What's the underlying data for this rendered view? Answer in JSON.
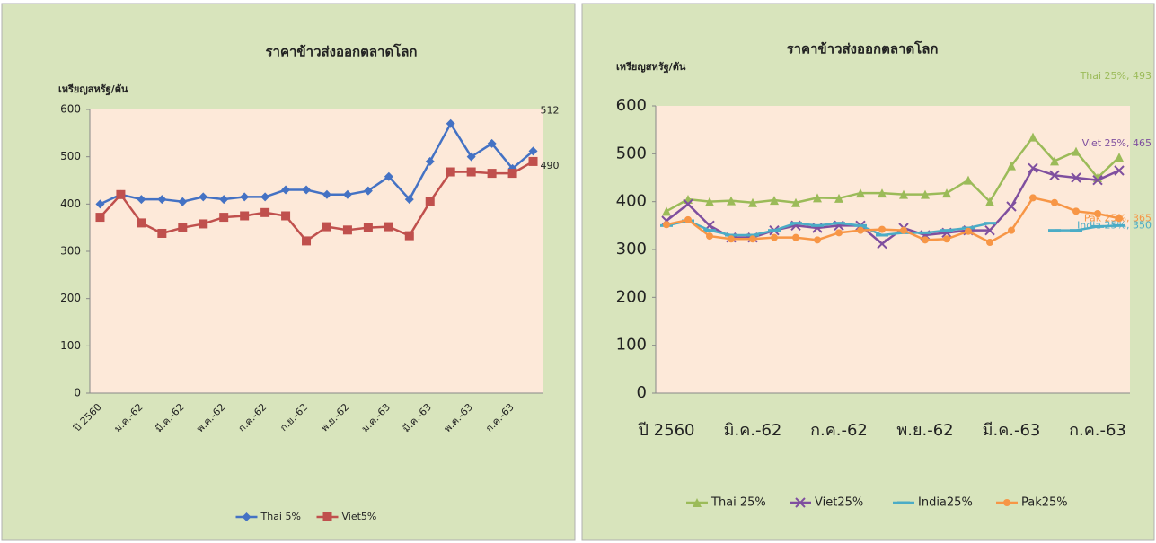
{
  "chart_data": [
    {
      "type": "line",
      "title": "ราคาข้าวส่งออกตลาดโลก",
      "y_label": "เหรียญสหรัฐ/ตัน",
      "categories": [
        "ปี 2560",
        null,
        "ม.ค.-62",
        null,
        "มี.ค.-62",
        null,
        "พ.ค.-62",
        null,
        "ก.ค.-62",
        null,
        "ก.ย.-62",
        null,
        "พ.ย.-62",
        null,
        "ม.ค.-63",
        null,
        "มี.ค.-63",
        null,
        "พ.ค.-63",
        null,
        "ก.ค.-63",
        null
      ],
      "series": [
        {
          "name": "Thai 5%",
          "color": "#4472c4",
          "marker": "diamond",
          "values": [
            400,
            420,
            410,
            410,
            405,
            415,
            410,
            415,
            415,
            430,
            430,
            420,
            420,
            428,
            458,
            410,
            490,
            570,
            500,
            528,
            475,
            512
          ],
          "value_labels": [
            null,
            null,
            null,
            null,
            null,
            null,
            null,
            null,
            null,
            null,
            null,
            null,
            null,
            null,
            null,
            null,
            null,
            null,
            null,
            null,
            null,
            "512"
          ]
        },
        {
          "name": "Viet5%",
          "color": "#c0504d",
          "marker": "square",
          "values": [
            372,
            420,
            360,
            338,
            350,
            358,
            372,
            375,
            382,
            375,
            322,
            352,
            345,
            350,
            352,
            333,
            405,
            468,
            468,
            465,
            465,
            490
          ],
          "value_labels": [
            null,
            null,
            null,
            null,
            null,
            null,
            null,
            null,
            null,
            null,
            null,
            null,
            null,
            null,
            null,
            null,
            null,
            null,
            null,
            null,
            null,
            "490"
          ]
        }
      ],
      "ylim": [
        0,
        600
      ],
      "yticks": [
        0,
        100,
        200,
        300,
        400,
        500,
        600
      ],
      "legend": "bottom"
    },
    {
      "type": "line",
      "title": "ราคาข้าวส่งออกตลาดโลก",
      "y_label": "เหรียญสหรัฐ/ตัน",
      "categories": [
        "ปี 2560",
        null,
        null,
        null,
        "มิ.ค.-62",
        null,
        null,
        null,
        "ก.ค.-62",
        null,
        null,
        null,
        "พ.ย.-62",
        null,
        null,
        null,
        "มี.ค.-63",
        null,
        null,
        null,
        "ก.ค.-63",
        null
      ],
      "series": [
        {
          "name": "Thai 25%",
          "color": "#9bbb59",
          "marker": "triangle",
          "values": [
            380,
            405,
            400,
            402,
            398,
            403,
            398,
            408,
            407,
            418,
            418,
            415,
            415,
            418,
            445,
            400,
            475,
            535,
            485,
            505,
            450,
            493
          ],
          "value_labels": [
            null,
            null,
            null,
            null,
            null,
            null,
            null,
            null,
            null,
            null,
            null,
            null,
            null,
            null,
            null,
            null,
            null,
            null,
            null,
            null,
            null,
            "Thai 25%, 493"
          ]
        },
        {
          "name": "Viet25%",
          "color": "#7f4f9f",
          "marker": "x",
          "values": [
            360,
            395,
            350,
            325,
            325,
            340,
            350,
            345,
            350,
            350,
            312,
            345,
            330,
            335,
            340,
            340,
            390,
            470,
            455,
            450,
            445,
            465
          ],
          "value_labels": [
            null,
            null,
            null,
            null,
            null,
            null,
            null,
            null,
            null,
            null,
            null,
            null,
            null,
            null,
            null,
            null,
            null,
            null,
            null,
            null,
            null,
            "Viet 25%, 465"
          ]
        },
        {
          "name": "India25%",
          "color": "#4bacc6",
          "marker": "dash",
          "values": [
            350,
            360,
            340,
            330,
            330,
            340,
            355,
            350,
            355,
            350,
            330,
            335,
            335,
            340,
            345,
            355,
            null,
            null,
            340,
            340,
            348,
            350
          ],
          "value_labels": [
            null,
            null,
            null,
            null,
            null,
            null,
            null,
            null,
            null,
            null,
            null,
            null,
            null,
            null,
            null,
            null,
            null,
            null,
            null,
            null,
            null,
            "India 25%, 350"
          ]
        },
        {
          "name": "Pak25%",
          "color": "#f79646",
          "marker": "circle",
          "values": [
            352,
            362,
            328,
            322,
            322,
            325,
            325,
            320,
            335,
            340,
            342,
            340,
            320,
            322,
            338,
            315,
            340,
            408,
            398,
            380,
            375,
            365
          ],
          "value_labels": [
            null,
            null,
            null,
            null,
            null,
            null,
            null,
            null,
            null,
            null,
            null,
            null,
            null,
            null,
            null,
            null,
            null,
            null,
            null,
            null,
            null,
            "Pak 25%, 365"
          ]
        }
      ],
      "ylim": [
        0,
        600
      ],
      "yticks": [
        0,
        100,
        200,
        300,
        400,
        500,
        600
      ],
      "legend": "bottom"
    }
  ]
}
